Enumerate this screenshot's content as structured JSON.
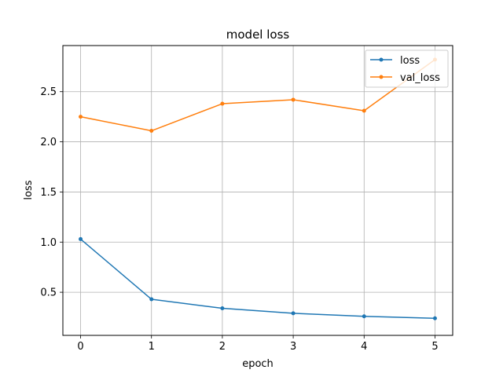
{
  "chart_data": {
    "type": "line",
    "title": "model loss",
    "xlabel": "epoch",
    "ylabel": "loss",
    "x": [
      0,
      1,
      2,
      3,
      4,
      5
    ],
    "x_ticks": [
      "0",
      "1",
      "2",
      "3",
      "4",
      "5"
    ],
    "y_ticks": [
      "0.5",
      "1.0",
      "1.5",
      "2.0",
      "2.5"
    ],
    "xlim": [
      -0.25,
      5.25
    ],
    "ylim": [
      0.07,
      2.96
    ],
    "grid": true,
    "legend_position": "top-right",
    "series": [
      {
        "name": "loss",
        "color": "#1f77b4",
        "values": [
          1.03,
          0.43,
          0.34,
          0.29,
          0.26,
          0.24
        ]
      },
      {
        "name": "val_loss",
        "color": "#ff7f0e",
        "values": [
          2.25,
          2.11,
          2.38,
          2.42,
          2.31,
          2.82
        ]
      }
    ]
  }
}
